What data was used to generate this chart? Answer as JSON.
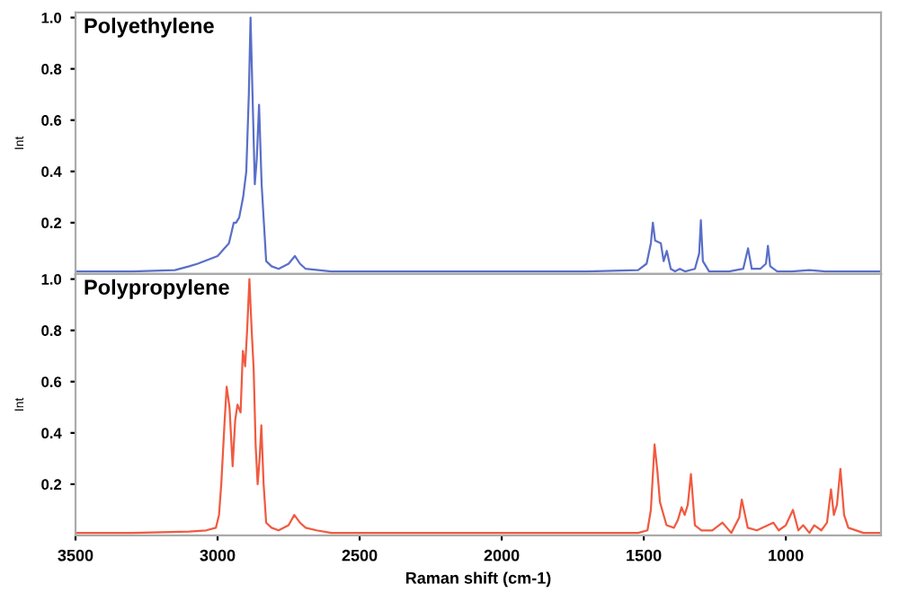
{
  "chart_data": [
    {
      "type": "line",
      "title": "Polyethylene",
      "ylabel": "Int",
      "xlim": [
        3500,
        665
      ],
      "xticks": [
        3500,
        3000,
        2500,
        2000,
        1500,
        1000
      ],
      "ylim": [
        0,
        1.02
      ],
      "yticks": [
        0.2,
        0.4,
        0.6,
        0.8,
        {
          "value": 1,
          "label": "1.0"
        }
      ],
      "tick_labels": "y",
      "grid": false,
      "series": [
        {
          "color": "#5a6fc8",
          "x": [
            3500,
            3300,
            3150,
            3100,
            3070,
            3000,
            2960,
            2943,
            2935,
            2924,
            2910,
            2899,
            2890,
            2884,
            2877,
            2869,
            2862,
            2854,
            2845,
            2829,
            2810,
            2785,
            2750,
            2728,
            2710,
            2690,
            2600,
            2400,
            2000,
            1700,
            1520,
            1490,
            1475,
            1468,
            1460,
            1440,
            1430,
            1419,
            1405,
            1390,
            1373,
            1355,
            1320,
            1305,
            1299,
            1292,
            1270,
            1200,
            1150,
            1133,
            1120,
            1090,
            1070,
            1063,
            1055,
            1030,
            980,
            917,
            860,
            665
          ],
          "values": [
            0.01,
            0.01,
            0.015,
            0.03,
            0.04,
            0.07,
            0.12,
            0.2,
            0.2,
            0.22,
            0.3,
            0.4,
            0.7,
            1.0,
            0.7,
            0.35,
            0.45,
            0.66,
            0.35,
            0.05,
            0.03,
            0.02,
            0.04,
            0.07,
            0.04,
            0.02,
            0.01,
            0.01,
            0.01,
            0.01,
            0.015,
            0.04,
            0.12,
            0.2,
            0.13,
            0.12,
            0.05,
            0.09,
            0.02,
            0.01,
            0.02,
            0.01,
            0.02,
            0.08,
            0.21,
            0.05,
            0.01,
            0.01,
            0.02,
            0.1,
            0.02,
            0.02,
            0.04,
            0.11,
            0.03,
            0.01,
            0.01,
            0.015,
            0.01,
            0.01
          ]
        }
      ]
    },
    {
      "type": "line",
      "title": "Polypropylene",
      "ylabel": "Int",
      "xlabel": "Raman shift (cm-1)",
      "xlim": [
        3500,
        665
      ],
      "xticks": [
        3500,
        3000,
        2500,
        2000,
        1500,
        1000
      ],
      "ylim": [
        0,
        1.02
      ],
      "yticks": [
        0.2,
        0.4,
        0.6,
        0.8,
        {
          "value": 1,
          "label": "1.0"
        }
      ],
      "grid": false,
      "series": [
        {
          "color": "#f05a40",
          "x": [
            3500,
            3300,
            3100,
            3040,
            3006,
            2995,
            2987,
            2975,
            2968,
            2958,
            2947,
            2938,
            2930,
            2919,
            2911,
            2903,
            2896,
            2888,
            2880,
            2873,
            2866,
            2859,
            2852,
            2846,
            2838,
            2829,
            2810,
            2785,
            2750,
            2730,
            2710,
            2690,
            2652,
            2600,
            2300,
            2000,
            1700,
            1520,
            1487,
            1475,
            1462,
            1452,
            1443,
            1420,
            1394,
            1380,
            1367,
            1356,
            1345,
            1334,
            1320,
            1297,
            1259,
            1223,
            1192,
            1164,
            1155,
            1134,
            1102,
            1044,
            1025,
            1000,
            975,
            956,
            939,
            917,
            900,
            875,
            855,
            841,
            831,
            820,
            808,
            795,
            780,
            727,
            665
          ],
          "values": [
            0.01,
            0.01,
            0.015,
            0.02,
            0.03,
            0.08,
            0.2,
            0.45,
            0.58,
            0.5,
            0.27,
            0.45,
            0.51,
            0.48,
            0.72,
            0.66,
            0.8,
            1.0,
            0.8,
            0.65,
            0.35,
            0.2,
            0.3,
            0.43,
            0.2,
            0.05,
            0.03,
            0.02,
            0.04,
            0.08,
            0.05,
            0.03,
            0.02,
            0.01,
            0.01,
            0.01,
            0.01,
            0.01,
            0.02,
            0.1,
            0.355,
            0.25,
            0.13,
            0.04,
            0.03,
            0.06,
            0.11,
            0.08,
            0.12,
            0.24,
            0.04,
            0.02,
            0.02,
            0.05,
            0.01,
            0.07,
            0.14,
            0.03,
            0.02,
            0.05,
            0.02,
            0.04,
            0.1,
            0.02,
            0.04,
            0.01,
            0.04,
            0.02,
            0.05,
            0.18,
            0.08,
            0.12,
            0.26,
            0.08,
            0.03,
            0.01,
            0.01
          ]
        }
      ]
    }
  ]
}
